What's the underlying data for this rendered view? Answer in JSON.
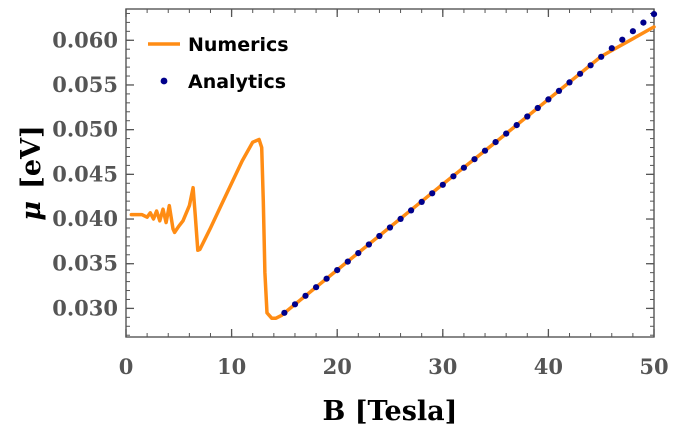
{
  "chart_data": {
    "type": "line",
    "xlabel": "B [Tesla]",
    "ylabel_symbol": "μ",
    "ylabel_unit": "[eV]",
    "xlim": [
      0,
      50
    ],
    "ylim": [
      0.0268,
      0.0635
    ],
    "x_ticks": [
      0,
      10,
      20,
      30,
      40,
      50
    ],
    "x_tick_labels": [
      "0",
      "10",
      "20",
      "30",
      "40",
      "50"
    ],
    "y_ticks": [
      0.03,
      0.035,
      0.04,
      0.045,
      0.05,
      0.055,
      0.06
    ],
    "y_tick_labels": [
      "0.030",
      "0.035",
      "0.040",
      "0.045",
      "0.050",
      "0.055",
      "0.060"
    ],
    "grid": false,
    "legend_position": "top-left",
    "colors": {
      "numerics": "#ff8c14",
      "analytics": "#00008b",
      "frame": "#555555"
    },
    "series": [
      {
        "name": "Numerics",
        "style": "line",
        "x": [
          0.5,
          1.5,
          2.0,
          2.3,
          2.6,
          2.9,
          3.2,
          3.5,
          3.8,
          4.1,
          4.45,
          4.6,
          5.0,
          5.4,
          6.0,
          6.35,
          6.55,
          6.8,
          7.0,
          7.5,
          8.0,
          9.0,
          10.0,
          11.0,
          12.0,
          12.6,
          12.85,
          13.0,
          13.15,
          13.35,
          13.8,
          14.2,
          14.7,
          15.0,
          20.0,
          25.0,
          30.0,
          35.0,
          40.0,
          45.0,
          50.0
        ],
        "y": [
          0.0405,
          0.0405,
          0.0402,
          0.0407,
          0.04,
          0.0409,
          0.0398,
          0.0411,
          0.0396,
          0.0415,
          0.0389,
          0.0385,
          0.0392,
          0.0398,
          0.0415,
          0.0435,
          0.0405,
          0.0365,
          0.0366,
          0.0378,
          0.039,
          0.0415,
          0.044,
          0.0465,
          0.0486,
          0.0489,
          0.048,
          0.042,
          0.034,
          0.0295,
          0.0289,
          0.0289,
          0.0292,
          0.0295,
          0.0343,
          0.0391,
          0.0439,
          0.0486,
          0.0534,
          0.0582,
          0.0615
        ]
      },
      {
        "name": "Analytics",
        "style": "dots",
        "x_start": 15,
        "x_end": 50,
        "x_step": 1,
        "line": {
          "slope": 0.000955,
          "intercept": 0.01518
        }
      }
    ]
  }
}
